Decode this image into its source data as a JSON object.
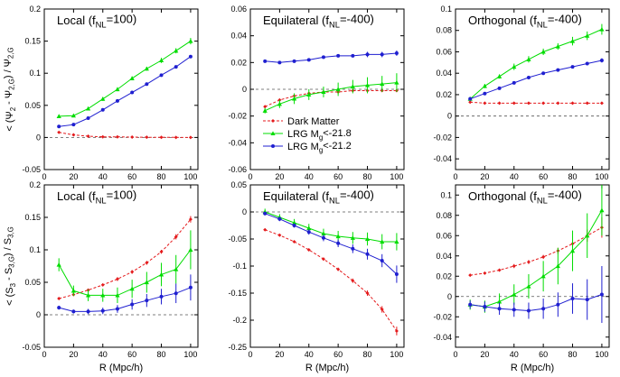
{
  "chart_data": {
    "type": "line",
    "xlabel": "R (Mpc/h)",
    "rows": [
      {
        "ylabel_pre": "< (Ψ",
        "ylabel_sub1": "2",
        "ylabel_mid": " - Ψ",
        "ylabel_sub2": "2,G",
        "ylabel_post": ") / Ψ",
        "ylabel_sub3": "2,G"
      },
      {
        "ylabel_pre": "< (S",
        "ylabel_sub1": "3",
        "ylabel_mid": " - S",
        "ylabel_sub2": "3,G",
        "ylabel_post": ") / S",
        "ylabel_sub3": "3,G"
      }
    ],
    "legend": [
      {
        "pre": "Dark Matter",
        "sub": "",
        "post": "",
        "color": "#e41a1c"
      },
      {
        "pre": "LRG M",
        "sub": "g",
        "post": "<-21.8",
        "color": "#00dd00"
      },
      {
        "pre": "LRG M",
        "sub": "g",
        "post": "<-21.2",
        "color": "#1f1fd0"
      }
    ],
    "colors": {
      "dark_matter": "#e41a1c",
      "lrg_bright": "#00dd00",
      "lrg_faint": "#1f1fd0"
    },
    "x_ticks": [
      0,
      20,
      40,
      60,
      80,
      100
    ],
    "xlim": [
      0,
      105
    ],
    "panels": [
      {
        "title_pre": "Local (f",
        "title_sub": "NL",
        "title_post": "=100)",
        "ylim": [
          -0.05,
          0.2
        ],
        "y_ticks": [
          -0.05,
          0,
          0.05,
          0.1,
          0.15,
          0.2
        ],
        "y_tick_labels": [
          "-0.05",
          "0",
          "0.05",
          "0.1",
          "0.15",
          "0.2"
        ],
        "series": [
          {
            "key": "dark_matter",
            "x": [
              10,
              20,
              30,
              40,
              50,
              60,
              70,
              80,
              90,
              100
            ],
            "y": [
              0.008,
              0.004,
              0.002,
              0.001,
              0.001,
              0.0005,
              0.0003,
              0.0002,
              0.0001,
              0.0
            ],
            "err": [
              0.001,
              0.001,
              0.001,
              0.001,
              0.001,
              0.001,
              0.001,
              0.001,
              0.001,
              0.001
            ]
          },
          {
            "key": "lrg_bright",
            "x": [
              10,
              20,
              30,
              40,
              50,
              60,
              70,
              80,
              90,
              100
            ],
            "y": [
              0.033,
              0.034,
              0.045,
              0.06,
              0.075,
              0.092,
              0.107,
              0.12,
              0.135,
              0.15
            ],
            "err": [
              0.002,
              0.002,
              0.002,
              0.003,
              0.003,
              0.003,
              0.003,
              0.004,
              0.004,
              0.005
            ]
          },
          {
            "key": "lrg_faint",
            "x": [
              10,
              20,
              30,
              40,
              50,
              60,
              70,
              80,
              90,
              100
            ],
            "y": [
              0.017,
              0.02,
              0.03,
              0.043,
              0.057,
              0.07,
              0.083,
              0.097,
              0.11,
              0.126
            ],
            "err": [
              0.001,
              0.001,
              0.001,
              0.001,
              0.001,
              0.001,
              0.002,
              0.002,
              0.002,
              0.002
            ]
          }
        ]
      },
      {
        "title_pre": "Equilateral (f",
        "title_sub": "NL",
        "title_post": "=-400)",
        "ylim": [
          -0.06,
          0.06
        ],
        "y_ticks": [
          -0.06,
          -0.04,
          -0.02,
          0,
          0.02,
          0.04,
          0.06
        ],
        "y_tick_labels": [
          "-0.06",
          "-0.04",
          "-0.02",
          "0",
          "0.02",
          "0.04",
          "0.06"
        ],
        "series": [
          {
            "key": "dark_matter",
            "x": [
              10,
              20,
              30,
              40,
              50,
              60,
              70,
              80,
              90,
              100
            ],
            "y": [
              -0.013,
              -0.008,
              -0.005,
              -0.003,
              -0.002,
              -0.002,
              -0.001,
              -0.001,
              -0.001,
              -0.001
            ],
            "err": [
              0.001,
              0.001,
              0.001,
              0.001,
              0.001,
              0.001,
              0.001,
              0.001,
              0.001,
              0.001
            ]
          },
          {
            "key": "lrg_bright",
            "x": [
              10,
              20,
              30,
              40,
              50,
              60,
              70,
              80,
              90,
              100
            ],
            "y": [
              -0.016,
              -0.011,
              -0.007,
              -0.004,
              -0.002,
              0.0,
              0.002,
              0.003,
              0.004,
              0.005
            ],
            "err": [
              0.002,
              0.003,
              0.004,
              0.004,
              0.004,
              0.005,
              0.005,
              0.006,
              0.006,
              0.007
            ]
          },
          {
            "key": "lrg_faint",
            "x": [
              10,
              20,
              30,
              40,
              50,
              60,
              70,
              80,
              90,
              100
            ],
            "y": [
              0.021,
              0.02,
              0.021,
              0.022,
              0.024,
              0.025,
              0.025,
              0.026,
              0.026,
              0.027
            ],
            "err": [
              0.001,
              0.001,
              0.001,
              0.001,
              0.001,
              0.001,
              0.001,
              0.002,
              0.002,
              0.002
            ]
          }
        ]
      },
      {
        "title_pre": "Orthogonal (f",
        "title_sub": "NL",
        "title_post": "=-400)",
        "ylim": [
          -0.05,
          0.1
        ],
        "y_ticks": [
          -0.04,
          -0.02,
          0,
          0.02,
          0.04,
          0.06,
          0.08,
          0.1
        ],
        "y_tick_labels": [
          "-0.04",
          "-0.02",
          "0",
          "0.02",
          "0.04",
          "0.06",
          "0.08",
          "0.1"
        ],
        "series": [
          {
            "key": "dark_matter",
            "x": [
              10,
              20,
              30,
              40,
              50,
              60,
              70,
              80,
              90,
              100
            ],
            "y": [
              0.013,
              0.012,
              0.012,
              0.012,
              0.012,
              0.012,
              0.012,
              0.012,
              0.012,
              0.012
            ],
            "err": [
              0.001,
              0.001,
              0.001,
              0.001,
              0.001,
              0.001,
              0.001,
              0.001,
              0.001,
              0.001
            ]
          },
          {
            "key": "lrg_bright",
            "x": [
              10,
              20,
              30,
              40,
              50,
              60,
              70,
              80,
              90,
              100
            ],
            "y": [
              0.016,
              0.028,
              0.037,
              0.046,
              0.053,
              0.06,
              0.065,
              0.07,
              0.075,
              0.081
            ],
            "err": [
              0.002,
              0.002,
              0.002,
              0.003,
              0.003,
              0.003,
              0.003,
              0.004,
              0.004,
              0.005
            ]
          },
          {
            "key": "lrg_faint",
            "x": [
              10,
              20,
              30,
              40,
              50,
              60,
              70,
              80,
              90,
              100
            ],
            "y": [
              0.016,
              0.021,
              0.026,
              0.031,
              0.036,
              0.04,
              0.043,
              0.046,
              0.049,
              0.052
            ],
            "err": [
              0.001,
              0.001,
              0.001,
              0.001,
              0.001,
              0.001,
              0.001,
              0.001,
              0.001,
              0.002
            ]
          }
        ]
      },
      {
        "title_pre": "Local (f",
        "title_sub": "NL",
        "title_post": "=100)",
        "ylim": [
          -0.05,
          0.2
        ],
        "y_ticks": [
          -0.05,
          0,
          0.05,
          0.1,
          0.15,
          0.2
        ],
        "y_tick_labels": [
          "-0.05",
          "0",
          "0.05",
          "0.1",
          "0.15",
          "0.2"
        ],
        "series": [
          {
            "key": "dark_matter",
            "x": [
              10,
              20,
              30,
              40,
              50,
              60,
              70,
              80,
              90,
              100
            ],
            "y": [
              0.025,
              0.031,
              0.038,
              0.046,
              0.055,
              0.066,
              0.08,
              0.097,
              0.12,
              0.147
            ],
            "err": [
              0.002,
              0.002,
              0.002,
              0.002,
              0.003,
              0.003,
              0.003,
              0.003,
              0.004,
              0.005
            ]
          },
          {
            "key": "lrg_bright",
            "x": [
              10,
              20,
              30,
              40,
              50,
              60,
              70,
              80,
              90,
              100
            ],
            "y": [
              0.077,
              0.037,
              0.03,
              0.03,
              0.03,
              0.04,
              0.05,
              0.062,
              0.07,
              0.1
            ],
            "err": [
              0.01,
              0.008,
              0.009,
              0.01,
              0.012,
              0.014,
              0.016,
              0.018,
              0.022,
              0.03
            ]
          },
          {
            "key": "lrg_faint",
            "x": [
              10,
              20,
              30,
              40,
              50,
              60,
              70,
              80,
              90,
              100
            ],
            "y": [
              0.011,
              0.005,
              0.005,
              0.006,
              0.009,
              0.016,
              0.022,
              0.028,
              0.033,
              0.042
            ],
            "err": [
              0.003,
              0.003,
              0.004,
              0.005,
              0.006,
              0.008,
              0.01,
              0.012,
              0.015,
              0.02
            ]
          }
        ]
      },
      {
        "title_pre": "Equilateral (f",
        "title_sub": "NL",
        "title_post": "=-400)",
        "ylim": [
          -0.25,
          0.05
        ],
        "y_ticks": [
          -0.25,
          -0.2,
          -0.15,
          -0.1,
          -0.05,
          0,
          0.05
        ],
        "y_tick_labels": [
          "-0.25",
          "-0.2",
          "-0.15",
          "-0.1",
          "-0.05",
          "0",
          "0.05"
        ],
        "series": [
          {
            "key": "dark_matter",
            "x": [
              10,
              20,
              30,
              40,
              50,
              60,
              70,
              80,
              90,
              100
            ],
            "y": [
              -0.033,
              -0.043,
              -0.055,
              -0.07,
              -0.087,
              -0.106,
              -0.127,
              -0.15,
              -0.18,
              -0.22
            ],
            "err": [
              0.002,
              0.002,
              0.002,
              0.002,
              0.003,
              0.003,
              0.004,
              0.005,
              0.006,
              0.008
            ]
          },
          {
            "key": "lrg_bright",
            "x": [
              10,
              20,
              30,
              40,
              50,
              60,
              70,
              80,
              90,
              100
            ],
            "y": [
              0.0,
              -0.01,
              -0.02,
              -0.03,
              -0.04,
              -0.045,
              -0.048,
              -0.05,
              -0.055,
              -0.055
            ],
            "err": [
              0.006,
              0.006,
              0.007,
              0.008,
              0.009,
              0.01,
              0.011,
              0.012,
              0.014,
              0.016
            ]
          },
          {
            "key": "lrg_faint",
            "x": [
              10,
              20,
              30,
              40,
              50,
              60,
              70,
              80,
              90,
              100
            ],
            "y": [
              -0.003,
              -0.013,
              -0.025,
              -0.037,
              -0.048,
              -0.058,
              -0.068,
              -0.078,
              -0.09,
              -0.115
            ],
            "err": [
              0.003,
              0.004,
              0.004,
              0.005,
              0.006,
              0.007,
              0.008,
              0.01,
              0.012,
              0.016
            ]
          }
        ]
      },
      {
        "title_pre": "Orthogonal (f",
        "title_sub": "NL",
        "title_post": "=-400)",
        "ylim": [
          -0.05,
          0.11
        ],
        "y_ticks": [
          -0.04,
          -0.02,
          0,
          0.02,
          0.04,
          0.06,
          0.08,
          0.1
        ],
        "y_tick_labels": [
          "-0.04",
          "-0.02",
          "0",
          "0.02",
          "0.04",
          "0.06",
          "0.08",
          "0.1"
        ],
        "series": [
          {
            "key": "dark_matter",
            "x": [
              10,
              20,
              30,
              40,
              50,
              60,
              70,
              80,
              90,
              100
            ],
            "y": [
              0.021,
              0.023,
              0.026,
              0.03,
              0.034,
              0.039,
              0.045,
              0.052,
              0.06,
              0.068
            ],
            "err": [
              0.001,
              0.001,
              0.001,
              0.002,
              0.002,
              0.002,
              0.003,
              0.004,
              0.006,
              0.01
            ]
          },
          {
            "key": "lrg_bright",
            "x": [
              10,
              20,
              30,
              40,
              50,
              60,
              70,
              80,
              90,
              100
            ],
            "y": [
              -0.008,
              -0.01,
              -0.005,
              0.002,
              0.01,
              0.02,
              0.03,
              0.045,
              0.06,
              0.085
            ],
            "err": [
              0.005,
              0.006,
              0.008,
              0.01,
              0.012,
              0.015,
              0.018,
              0.02,
              0.022,
              0.025
            ]
          },
          {
            "key": "lrg_faint",
            "x": [
              10,
              20,
              30,
              40,
              50,
              60,
              70,
              80,
              90,
              100
            ],
            "y": [
              -0.008,
              -0.01,
              -0.012,
              -0.013,
              -0.014,
              -0.012,
              -0.008,
              -0.002,
              -0.003,
              0.002
            ],
            "err": [
              0.004,
              0.005,
              0.006,
              0.007,
              0.008,
              0.01,
              0.012,
              0.015,
              0.02,
              0.028
            ]
          }
        ]
      }
    ]
  }
}
